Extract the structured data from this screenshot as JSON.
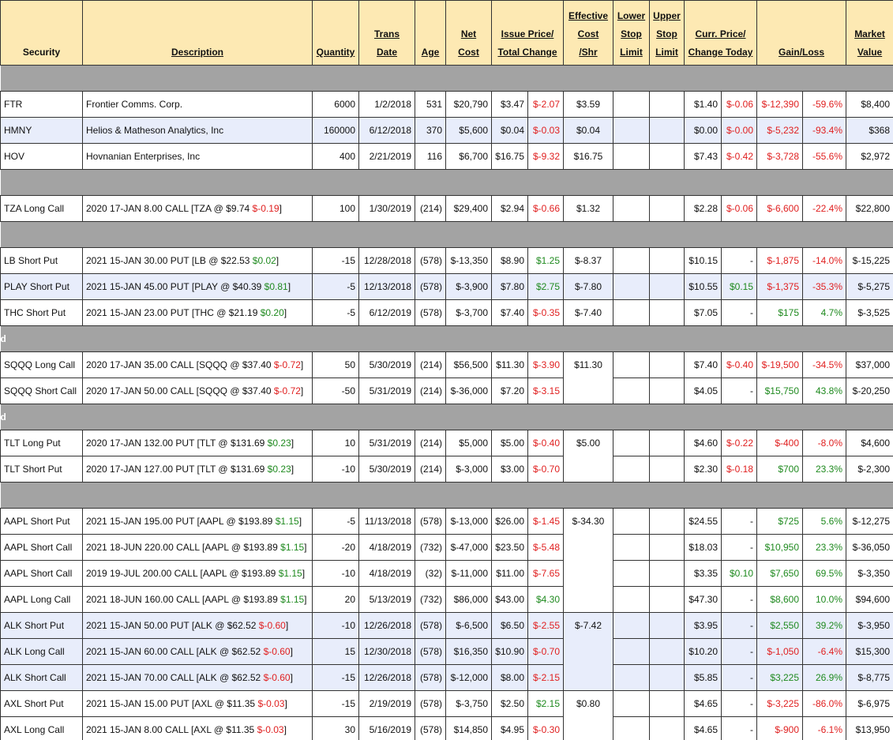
{
  "columns": [
    {
      "lines": [
        "Security"
      ]
    },
    {
      "lines": [
        "Description"
      ]
    },
    {
      "lines": [
        "Quantity"
      ]
    },
    {
      "lines": [
        "Trans",
        "Date"
      ]
    },
    {
      "lines": [
        "Age"
      ]
    },
    {
      "lines": [
        "Net",
        "Cost"
      ]
    },
    {
      "lines": [
        "Issue Price/",
        "Total Change"
      ],
      "span": 2
    },
    {
      "lines": [
        "Effective",
        "Cost",
        "/Shr"
      ]
    },
    {
      "lines": [
        "Lower",
        "Stop",
        "Limit"
      ]
    },
    {
      "lines": [
        "Upper",
        "Stop",
        "Limit"
      ]
    },
    {
      "lines": [
        "Curr. Price/",
        "Change Today"
      ],
      "span": 2
    },
    {
      "lines": [
        "Gain/Loss"
      ],
      "span": 2
    },
    {
      "lines": [
        "Market",
        "Value"
      ]
    }
  ],
  "groups": [
    {
      "rows": [
        {
          "security": "FTR",
          "description": "Frontier Comms. Corp.",
          "quantity": "6000",
          "date": "1/2/2018",
          "age": "531",
          "net_cost": "$20,790",
          "issue_price": "$3.47",
          "total_change": "$-2.07",
          "effective_cost": "$3.59",
          "curr_price": "$1.40",
          "change_today": "$-0.06",
          "gain": "$-12,390",
          "gain_pct": "-59.6%",
          "market_value": "$8,400"
        },
        {
          "security": "HMNY",
          "description": "Helios & Matheson Analytics, Inc",
          "quantity": "160000",
          "date": "6/12/2018",
          "age": "370",
          "net_cost": "$5,600",
          "issue_price": "$0.04",
          "total_change": "$-0.03",
          "effective_cost": "$0.04",
          "curr_price": "$0.00",
          "change_today": "$-0.00",
          "gain": "$-5,232",
          "gain_pct": "-93.4%",
          "market_value": "$368",
          "highlight": true
        },
        {
          "security": "HOV",
          "description": "Hovnanian Enterprises, Inc",
          "quantity": "400",
          "date": "2/21/2019",
          "age": "116",
          "net_cost": "$6,700",
          "issue_price": "$16.75",
          "total_change": "$-9.32",
          "effective_cost": "$16.75",
          "curr_price": "$7.43",
          "change_today": "$-0.42",
          "gain": "$-3,728",
          "gain_pct": "-55.6%",
          "market_value": "$2,972"
        }
      ]
    },
    {
      "rows": [
        {
          "security": "TZA Long Call",
          "description": [
            "2020 17-JAN 8.00 CALL [TZA @ $9.74",
            "$-0.19",
            "]"
          ],
          "quantity": "100",
          "date": "1/30/2019",
          "age": "(214)",
          "net_cost": "$29,400",
          "issue_price": "$2.94",
          "total_change": "$-0.66",
          "effective_cost": "$1.32",
          "curr_price": "$2.28",
          "change_today": "$-0.06",
          "gain": "$-6,600",
          "gain_pct": "-22.4%",
          "market_value": "$22,800"
        }
      ]
    },
    {
      "rows": [
        {
          "security": "LB Short Put",
          "description": [
            "2021 15-JAN 30.00 PUT [LB @ $22.53",
            "$0.02",
            "]"
          ],
          "quantity": "-15",
          "date": "12/28/2018",
          "age": "(578)",
          "net_cost": "$-13,350",
          "issue_price": "$8.90",
          "total_change": "$1.25",
          "effective_cost": "$-8.37",
          "curr_price": "$10.15",
          "change_today": "-",
          "gain": "$-1,875",
          "gain_pct": "-14.0%",
          "market_value": "$-15,225"
        },
        {
          "security": "PLAY Short Put",
          "description": [
            "2021 15-JAN 45.00 PUT [PLAY @ $40.39",
            "$0.81",
            "]"
          ],
          "quantity": "-5",
          "date": "12/13/2018",
          "age": "(578)",
          "net_cost": "$-3,900",
          "issue_price": "$7.80",
          "total_change": "$2.75",
          "effective_cost": "$-7.80",
          "curr_price": "$10.55",
          "change_today": "$0.15",
          "gain": "$-1,375",
          "gain_pct": "-35.3%",
          "market_value": "$-5,275",
          "highlight": true
        },
        {
          "security": "THC Short Put",
          "description": [
            "2021 15-JAN 23.00 PUT [THC @ $21.19",
            "$0.20",
            "]"
          ],
          "quantity": "-5",
          "date": "6/12/2019",
          "age": "(578)",
          "net_cost": "$-3,700",
          "issue_price": "$7.40",
          "total_change": "$-0.35",
          "effective_cost": "$-7.40",
          "curr_price": "$7.05",
          "change_today": "-",
          "gain": "$175",
          "gain_pct": "4.7%",
          "market_value": "$-3,525"
        }
      ]
    },
    {
      "label": "d",
      "rows": [
        {
          "security": "SQQQ Long Call",
          "description": [
            "2020 17-JAN 35.00 CALL [SQQQ @ $37.40",
            "$-0.72",
            "]"
          ],
          "quantity": "50",
          "date": "5/30/2019",
          "age": "(214)",
          "net_cost": "$56,500",
          "issue_price": "$11.30",
          "total_change": "$-3.90",
          "effective_cost": "$11.30",
          "effective_cost_span": 2,
          "curr_price": "$7.40",
          "change_today": "$-0.40",
          "gain": "$-19,500",
          "gain_pct": "-34.5%",
          "market_value": "$37,000"
        },
        {
          "security": "SQQQ Short Call",
          "description": [
            "2020 17-JAN 50.00 CALL [SQQQ @ $37.40",
            "$-0.72",
            "]"
          ],
          "quantity": "-50",
          "date": "5/31/2019",
          "age": "(214)",
          "net_cost": "$-36,000",
          "issue_price": "$7.20",
          "total_change": "$-3.15",
          "curr_price": "$4.05",
          "change_today": "-",
          "gain": "$15,750",
          "gain_pct": "43.8%",
          "market_value": "$-20,250"
        }
      ]
    },
    {
      "label": "d",
      "rows": [
        {
          "security": "TLT Long Put",
          "description": [
            "2020 17-JAN 132.00 PUT [TLT @ $131.69",
            "$0.23",
            "]"
          ],
          "quantity": "10",
          "date": "5/31/2019",
          "age": "(214)",
          "net_cost": "$5,000",
          "issue_price": "$5.00",
          "total_change": "$-0.40",
          "effective_cost": "$5.00",
          "effective_cost_span": 2,
          "curr_price": "$4.60",
          "change_today": "$-0.22",
          "gain": "$-400",
          "gain_pct": "-8.0%",
          "market_value": "$4,600"
        },
        {
          "security": "TLT Short Put",
          "description": [
            "2020 17-JAN 127.00 PUT [TLT @ $131.69",
            "$0.23",
            "]"
          ],
          "quantity": "-10",
          "date": "5/30/2019",
          "age": "(214)",
          "net_cost": "$-3,000",
          "issue_price": "$3.00",
          "total_change": "$-0.70",
          "curr_price": "$2.30",
          "change_today": "$-0.18",
          "gain": "$700",
          "gain_pct": "23.3%",
          "market_value": "$-2,300"
        }
      ]
    },
    {
      "rows": [
        {
          "security": "AAPL Short Put",
          "description": [
            "2021 15-JAN 195.00 PUT [AAPL @ $193.89",
            "$1.15",
            "]"
          ],
          "quantity": "-5",
          "date": "11/13/2018",
          "age": "(578)",
          "net_cost": "$-13,000",
          "issue_price": "$26.00",
          "total_change": "$-1.45",
          "effective_cost": "$-34.30",
          "effective_cost_span": 4,
          "curr_price": "$24.55",
          "change_today": "-",
          "gain": "$725",
          "gain_pct": "5.6%",
          "market_value": "$-12,275"
        },
        {
          "security": "AAPL Short Call",
          "description": [
            "2021 18-JUN 220.00 CALL [AAPL @ $193.89",
            "$1.15",
            "]"
          ],
          "quantity": "-20",
          "date": "4/18/2019",
          "age": "(732)",
          "net_cost": "$-47,000",
          "issue_price": "$23.50",
          "total_change": "$-5.48",
          "curr_price": "$18.03",
          "change_today": "-",
          "gain": "$10,950",
          "gain_pct": "23.3%",
          "market_value": "$-36,050"
        },
        {
          "security": "AAPL Short Call",
          "description": [
            "2019 19-JUL 200.00 CALL [AAPL @ $193.89",
            "$1.15",
            "]"
          ],
          "quantity": "-10",
          "date": "4/18/2019",
          "age": "(32)",
          "net_cost": "$-11,000",
          "issue_price": "$11.00",
          "total_change": "$-7.65",
          "curr_price": "$3.35",
          "change_today": "$0.10",
          "gain": "$7,650",
          "gain_pct": "69.5%",
          "market_value": "$-3,350"
        },
        {
          "security": "AAPL Long Call",
          "description": [
            "2021 18-JUN 160.00 CALL [AAPL @ $193.89",
            "$1.15",
            "]"
          ],
          "quantity": "20",
          "date": "5/13/2019",
          "age": "(732)",
          "net_cost": "$86,000",
          "issue_price": "$43.00",
          "total_change": "$4.30",
          "curr_price": "$47.30",
          "change_today": "-",
          "gain": "$8,600",
          "gain_pct": "10.0%",
          "market_value": "$94,600"
        },
        {
          "security": "ALK Short Put",
          "description": [
            "2021 15-JAN 50.00 PUT [ALK @ $62.52",
            "$-0.60",
            "]"
          ],
          "quantity": "-10",
          "date": "12/26/2018",
          "age": "(578)",
          "net_cost": "$-6,500",
          "issue_price": "$6.50",
          "total_change": "$-2.55",
          "effective_cost": "$-7.42",
          "effective_cost_span": 3,
          "curr_price": "$3.95",
          "change_today": "-",
          "gain": "$2,550",
          "gain_pct": "39.2%",
          "market_value": "$-3,950",
          "highlight": true
        },
        {
          "security": "ALK Long Call",
          "description": [
            "2021 15-JAN 60.00 CALL [ALK @ $62.52",
            "$-0.60",
            "]"
          ],
          "quantity": "15",
          "date": "12/30/2018",
          "age": "(578)",
          "net_cost": "$16,350",
          "issue_price": "$10.90",
          "total_change": "$-0.70",
          "curr_price": "$10.20",
          "change_today": "-",
          "gain": "$-1,050",
          "gain_pct": "-6.4%",
          "market_value": "$15,300",
          "highlight": true
        },
        {
          "security": "ALK Short Call",
          "description": [
            "2021 15-JAN 70.00 CALL [ALK @ $62.52",
            "$-0.60",
            "]"
          ],
          "quantity": "-15",
          "date": "12/26/2018",
          "age": "(578)",
          "net_cost": "$-12,000",
          "issue_price": "$8.00",
          "total_change": "$-2.15",
          "curr_price": "$5.85",
          "change_today": "-",
          "gain": "$3,225",
          "gain_pct": "26.9%",
          "market_value": "$-8,775",
          "highlight": true
        },
        {
          "security": "AXL Short Put",
          "description": [
            "2021 15-JAN 15.00 PUT [AXL @ $11.35",
            "$-0.03",
            "]"
          ],
          "quantity": "-15",
          "date": "2/19/2019",
          "age": "(578)",
          "net_cost": "$-3,750",
          "issue_price": "$2.50",
          "total_change": "$2.15",
          "effective_cost": "$0.80",
          "effective_cost_span": 2,
          "curr_price": "$4.65",
          "change_today": "-",
          "gain": "$-3,225",
          "gain_pct": "-86.0%",
          "market_value": "$-6,975"
        },
        {
          "security": "AXL Long Call",
          "description": [
            "2021 15-JAN 8.00 CALL [AXL @ $11.35",
            "$-0.03",
            "]"
          ],
          "quantity": "30",
          "date": "5/16/2019",
          "age": "(578)",
          "net_cost": "$14,850",
          "issue_price": "$4.95",
          "total_change": "$-0.30",
          "curr_price": "$4.65",
          "change_today": "-",
          "gain": "$-900",
          "gain_pct": "-6.1%",
          "market_value": "$13,950"
        }
      ]
    }
  ]
}
